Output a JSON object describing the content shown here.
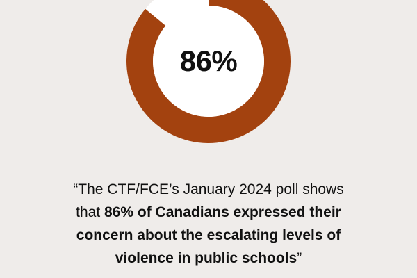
{
  "chart_data": {
    "type": "pie",
    "variant": "donut",
    "values": [
      86,
      14
    ],
    "center_label": "86%",
    "title": "",
    "colors": {
      "filled": "#a3420f",
      "remainder": "#ffffff",
      "background": "#efecea"
    }
  },
  "quote": {
    "line1": "“The CTF/FCE’s January 2024 poll shows",
    "line2_plain": "that ",
    "line2_bold": "86% of Canadians expressed their",
    "line3_bold": "concern about the escalating levels of",
    "line4_bold": "violence in public schools",
    "line4_close": "”"
  }
}
